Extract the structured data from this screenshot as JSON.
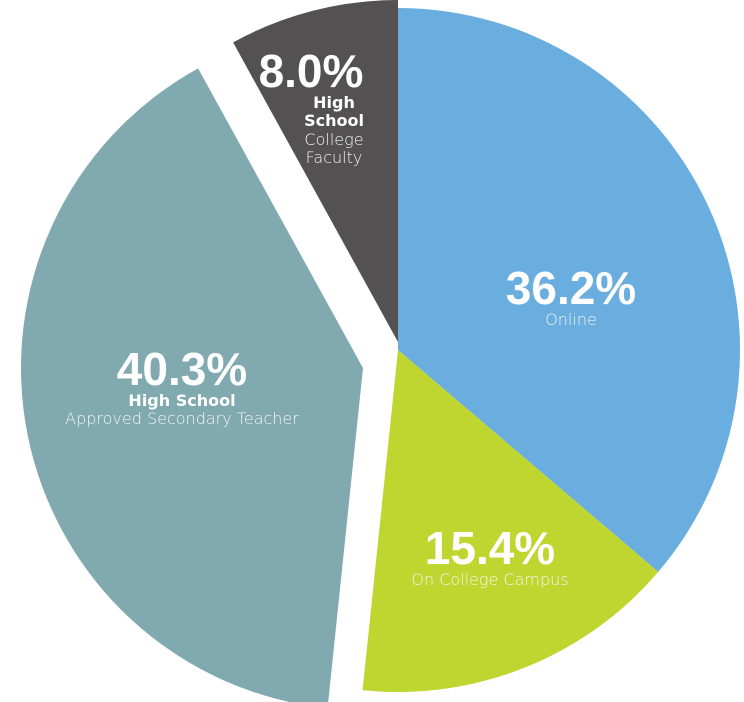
{
  "chart_data": {
    "type": "pie",
    "categories": [
      "Online",
      "On College Campus",
      "Approved Secondary Teacher",
      "College Faculty"
    ],
    "label_headers": [
      null,
      null,
      "High School",
      "High School"
    ],
    "values": [
      36.2,
      15.4,
      40.3,
      8.0
    ],
    "value_labels": [
      "36.2%",
      "15.4%",
      "40.3%",
      "8.0%"
    ],
    "colors": [
      "#6aaddf",
      "#c0d630",
      "#80aab0",
      "#535152"
    ]
  }
}
